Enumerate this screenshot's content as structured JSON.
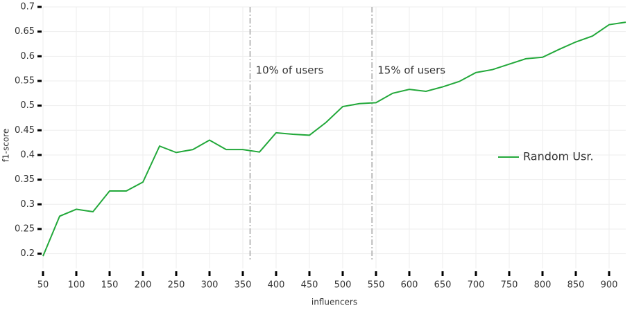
{
  "chart_data": {
    "type": "line",
    "x_label": "influencers",
    "y_label": "f1-score",
    "x": [
      50,
      75,
      100,
      125,
      150,
      175,
      200,
      225,
      250,
      275,
      300,
      325,
      350,
      375,
      400,
      425,
      450,
      475,
      500,
      525,
      550,
      575,
      600,
      625,
      650,
      675,
      700,
      725,
      750,
      775,
      800,
      825,
      850,
      875,
      900,
      925
    ],
    "series": [
      {
        "name": "Random Usr.",
        "color": "#22a83a",
        "values": [
          0.195,
          0.276,
          0.29,
          0.285,
          0.327,
          0.327,
          0.345,
          0.418,
          0.405,
          0.411,
          0.43,
          0.411,
          0.411,
          0.406,
          0.445,
          0.442,
          0.44,
          0.466,
          0.498,
          0.504,
          0.506,
          0.525,
          0.533,
          0.529,
          0.538,
          0.549,
          0.567,
          0.573,
          0.584,
          0.595,
          0.598,
          0.614,
          0.629,
          0.641,
          0.664,
          0.669
        ]
      }
    ],
    "xlim": [
      50,
      925
    ],
    "ylim": [
      0.17,
      0.7
    ],
    "xticks": [
      50,
      100,
      150,
      200,
      250,
      300,
      350,
      400,
      450,
      500,
      550,
      600,
      650,
      700,
      750,
      800,
      850,
      900
    ],
    "yticks": [
      0.2,
      0.25,
      0.3,
      0.35,
      0.4,
      0.45,
      0.5,
      0.55,
      0.6,
      0.65,
      0.7
    ],
    "grid": true,
    "legend": "right",
    "vlines": [
      {
        "x": 361,
        "label": "10% of users"
      },
      {
        "x": 544,
        "label": "15% of users"
      }
    ]
  }
}
